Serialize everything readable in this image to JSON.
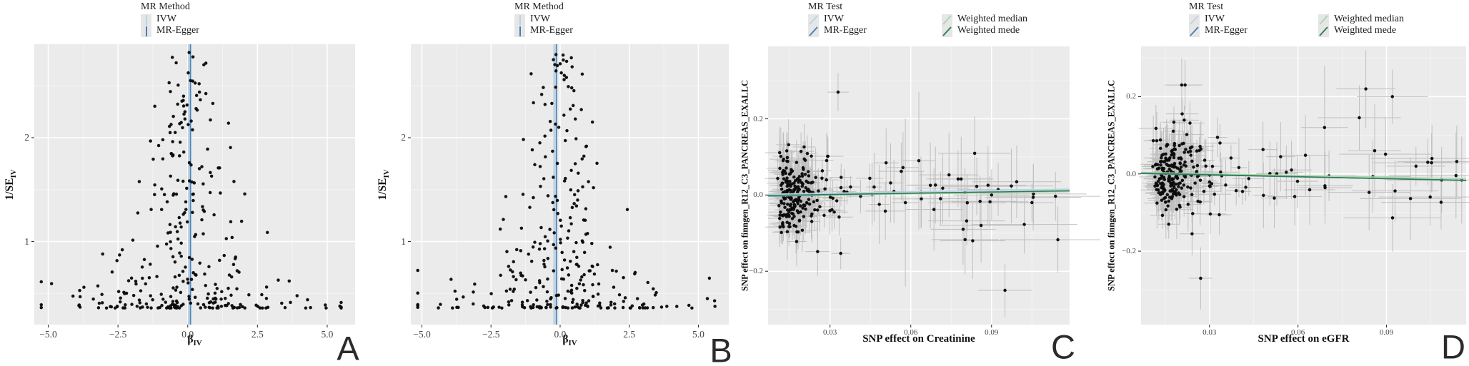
{
  "colors": {
    "ivw": "#b9d3e6",
    "mr_egger": "#4a7fb2",
    "weighted_median": "#a9d7a9",
    "weighted_mode": "#2e7d4f",
    "point": "#0a0a0a",
    "errbar": "#b5b5b5",
    "plot_bg": "#ebebeb",
    "grid_major": "#ffffff",
    "grid_minor": "#f5f5f5",
    "tick_mark": "#333333",
    "tick_text": "#454545",
    "panel_letter": "#2b2b2b"
  },
  "chart_data": [
    {
      "panel_label": "A",
      "type": "scatter",
      "subtype": "funnel",
      "legend": {
        "title": "MR Method",
        "entries": [
          {
            "label": "IVW",
            "swatch": "vline",
            "color_key": "ivw"
          },
          {
            "label": "MR-Egger",
            "swatch": "vline",
            "color_key": "mr_egger"
          }
        ]
      },
      "xlabel": {
        "text": "β",
        "sub": "IV"
      },
      "ylabel": {
        "text": "1/SE",
        "sub": "IV"
      },
      "xtick_labels": [
        "−5.0",
        "−2.5",
        "0.0",
        "2.5",
        "5.0"
      ],
      "xtick_values": [
        -5,
        -2.5,
        0,
        2.5,
        5
      ],
      "ytick_labels": [
        "1",
        "2"
      ],
      "ytick_values": [
        1,
        2
      ],
      "xlim": [
        -5.5,
        6.0
      ],
      "ylim": [
        0.2,
        2.9
      ],
      "grid": true,
      "vlines": [
        {
          "name": "IVW",
          "x": 0.05,
          "color_key": "ivw",
          "width": 3.6
        },
        {
          "name": "MR-Egger",
          "x": 0.1,
          "color_key": "mr_egger",
          "width": 1.7
        }
      ],
      "scatter": {
        "seed": 20240,
        "n": 315,
        "center": 0.0,
        "extra_points": [
          [
            0.05,
            2.82
          ],
          [
            0.1,
            2.55
          ],
          [
            -0.15,
            2.4
          ],
          [
            0.3,
            2.28
          ],
          [
            -0.1,
            2.18
          ],
          [
            0.9,
            2.33
          ],
          [
            -0.45,
            2.05
          ]
        ]
      }
    },
    {
      "panel_label": "B",
      "type": "scatter",
      "subtype": "funnel",
      "legend": {
        "title": "MR Method",
        "entries": [
          {
            "label": "IVW",
            "swatch": "vline",
            "color_key": "ivw"
          },
          {
            "label": "MR-Egger",
            "swatch": "vline",
            "color_key": "mr_egger"
          }
        ]
      },
      "xlabel": {
        "text": "β",
        "sub": "IV"
      },
      "ylabel": {
        "text": "1/SE",
        "sub": "IV"
      },
      "xtick_labels": [
        "−5.0",
        "−2.5",
        "0.0",
        "2.5",
        "5.0"
      ],
      "xtick_values": [
        -5,
        -2.5,
        0,
        2.5,
        5
      ],
      "ytick_labels": [
        "1",
        "2"
      ],
      "ytick_values": [
        1,
        2
      ],
      "xlim": [
        -5.4,
        6.1
      ],
      "ylim": [
        0.2,
        2.9
      ],
      "grid": true,
      "vlines": [
        {
          "name": "IVW",
          "x": -0.2,
          "color_key": "ivw",
          "width": 3.6
        },
        {
          "name": "MR-Egger",
          "x": -0.13,
          "color_key": "mr_egger",
          "width": 1.7
        }
      ],
      "scatter": {
        "seed": 777,
        "n": 300,
        "center": -0.05,
        "extra_points": [
          [
            -0.15,
            2.8
          ],
          [
            0.15,
            2.6
          ],
          [
            0.42,
            2.48
          ],
          [
            -0.3,
            2.33
          ],
          [
            0.55,
            2.18
          ],
          [
            -0.05,
            2.1
          ]
        ]
      }
    },
    {
      "panel_label": "C",
      "type": "scatter",
      "subtype": "mr-scatter",
      "legend": {
        "title": "MR Test",
        "columns": [
          [
            {
              "label": "IVW",
              "swatch": "diag",
              "color_key": "ivw"
            },
            {
              "label": "MR-Egger",
              "swatch": "diag",
              "color_key": "mr_egger"
            }
          ],
          [
            {
              "label": "Weighted median",
              "swatch": "diag",
              "color_key": "weighted_median"
            },
            {
              "label": "Weighted mede",
              "swatch": "diag",
              "color_key": "weighted_mode"
            }
          ]
        ]
      },
      "xlabel": {
        "text": "SNP effect on Creatinine"
      },
      "ylabel": {
        "text": "SNP effect on finngen_R12_C3_PANCREAS_EXALLC"
      },
      "xtick_labels": [
        "0.03",
        "0.06",
        "0.09"
      ],
      "xtick_values": [
        0.03,
        0.06,
        0.09
      ],
      "ytick_labels": [
        "0.2",
        "0.0",
        "−0.2"
      ],
      "ytick_values": [
        0.2,
        0.0,
        -0.2
      ],
      "xlim": [
        0.007,
        0.119
      ],
      "ylim": [
        -0.34,
        0.39
      ],
      "grid": true,
      "trend_lines": [
        {
          "name": "IVW",
          "color_key": "ivw",
          "intercept": 0.001,
          "slope": 0.12
        },
        {
          "name": "MR-Egger",
          "color_key": "mr_egger",
          "intercept": -0.004,
          "slope": 0.12
        },
        {
          "name": "Weighted median",
          "color_key": "weighted_median",
          "intercept": -0.003,
          "slope": 0.1
        },
        {
          "name": "Weighted mede",
          "color_key": "weighted_mode",
          "intercept": -0.002,
          "slope": 0.11
        }
      ],
      "scatter": {
        "seed": 4242,
        "n": 265,
        "error_bars": true,
        "extra_points": [
          [
            0.033,
            0.27,
            0.004,
            0.05
          ],
          [
            0.095,
            -0.25,
            0.01,
            0.07
          ],
          [
            0.083,
            -0.12,
            0.012,
            0.1
          ],
          [
            0.105,
            -0.02,
            0.008,
            0.05
          ],
          [
            0.063,
            0.09,
            0.006,
            0.18
          ],
          [
            0.058,
            -0.02,
            0.005,
            0.22
          ]
        ]
      }
    },
    {
      "panel_label": "D",
      "type": "scatter",
      "subtype": "mr-scatter",
      "legend": {
        "title": "MR Test",
        "columns": [
          [
            {
              "label": "IVW",
              "swatch": "diag",
              "color_key": "ivw"
            },
            {
              "label": "MR-Egger",
              "swatch": "diag",
              "color_key": "mr_egger"
            }
          ],
          [
            {
              "label": "Weighted median",
              "swatch": "diag",
              "color_key": "weighted_median"
            },
            {
              "label": "Weighted mede",
              "swatch": "diag",
              "color_key": "weighted_mode"
            }
          ]
        ]
      },
      "xlabel": {
        "text": "SNP effect on eGFR"
      },
      "ylabel": {
        "text": "SNP effect on finngen_R12_C3_PANCREAS_EXALLC"
      },
      "xtick_labels": [
        "0.03",
        "0.06",
        "0.09"
      ],
      "xtick_values": [
        0.03,
        0.06,
        0.09
      ],
      "ytick_labels": [
        "0.2",
        "0.0",
        "−0.2"
      ],
      "ytick_values": [
        0.2,
        0.0,
        -0.2
      ],
      "xlim": [
        0.0068,
        0.117
      ],
      "ylim": [
        -0.39,
        0.33
      ],
      "grid": true,
      "trend_lines": [
        {
          "name": "IVW",
          "color_key": "ivw",
          "intercept": 0.004,
          "slope": -0.18
        },
        {
          "name": "MR-Egger",
          "color_key": "mr_egger",
          "intercept": 0.002,
          "slope": -0.16
        },
        {
          "name": "Weighted median",
          "color_key": "weighted_median",
          "intercept": 0.005,
          "slope": -0.15
        },
        {
          "name": "Weighted mede",
          "color_key": "weighted_mode",
          "intercept": 0.003,
          "slope": -0.17
        }
      ],
      "scatter": {
        "seed": 9911,
        "n": 265,
        "error_bars": true,
        "extra_points": [
          [
            0.083,
            0.22,
            0.01,
            0.1
          ],
          [
            0.069,
            0.12,
            0.008,
            0.16
          ],
          [
            0.092,
            0.2,
            0.012,
            0.07
          ],
          [
            0.027,
            -0.27,
            0.004,
            0.08
          ],
          [
            0.1,
            0.02,
            0.01,
            0.05
          ],
          [
            0.086,
            0.06,
            0.009,
            0.12
          ],
          [
            0.104,
            0.03,
            0.008,
            0.06
          ]
        ]
      }
    }
  ]
}
